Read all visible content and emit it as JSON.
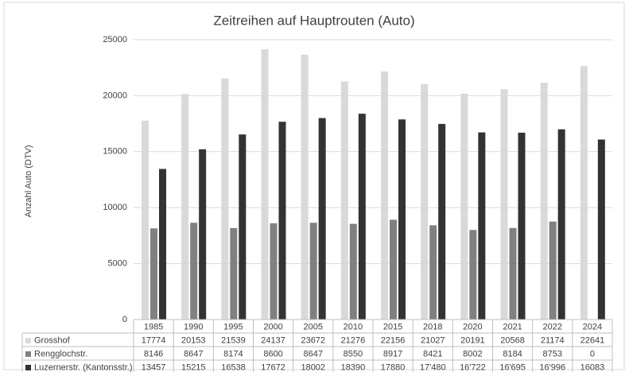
{
  "chart_data": {
    "type": "bar",
    "title": "Zeitreihen auf Hauptrouten (Auto)",
    "y_label": "Anzahl Auto (DTV)",
    "categories": [
      "1985",
      "1990",
      "1995",
      "2000",
      "2005",
      "2010",
      "2015",
      "2018",
      "2020",
      "2021",
      "2022",
      "2024"
    ],
    "series": [
      {
        "name": "Grosshof",
        "color": "#d9d9d9",
        "values": [
          17774,
          20153,
          21539,
          24137,
          23672,
          21276,
          22156,
          21027,
          20191,
          20568,
          21174,
          22641
        ]
      },
      {
        "name": "Rengglochstr.",
        "color": "#808080",
        "values": [
          8146,
          8647,
          8174,
          8600,
          8647,
          8550,
          8917,
          8421,
          8002,
          8184,
          8753,
          0
        ]
      },
      {
        "name": "Luzernerstr. (Kantonsstr.)",
        "color": "#333333",
        "values": [
          13457,
          15215,
          16538,
          17672,
          18002,
          18390,
          17880,
          17480,
          16722,
          16695,
          16996,
          16083
        ],
        "value_labels": [
          "13457",
          "15215",
          "16538",
          "17672",
          "18002",
          "18390",
          "17880",
          "17'480",
          "16'722",
          "16'695",
          "16'996",
          "16083"
        ]
      }
    ],
    "ylim": [
      0,
      25000
    ],
    "yticks": [
      0,
      5000,
      10000,
      15000,
      20000,
      25000
    ],
    "grid": true,
    "legend": "data-table"
  }
}
